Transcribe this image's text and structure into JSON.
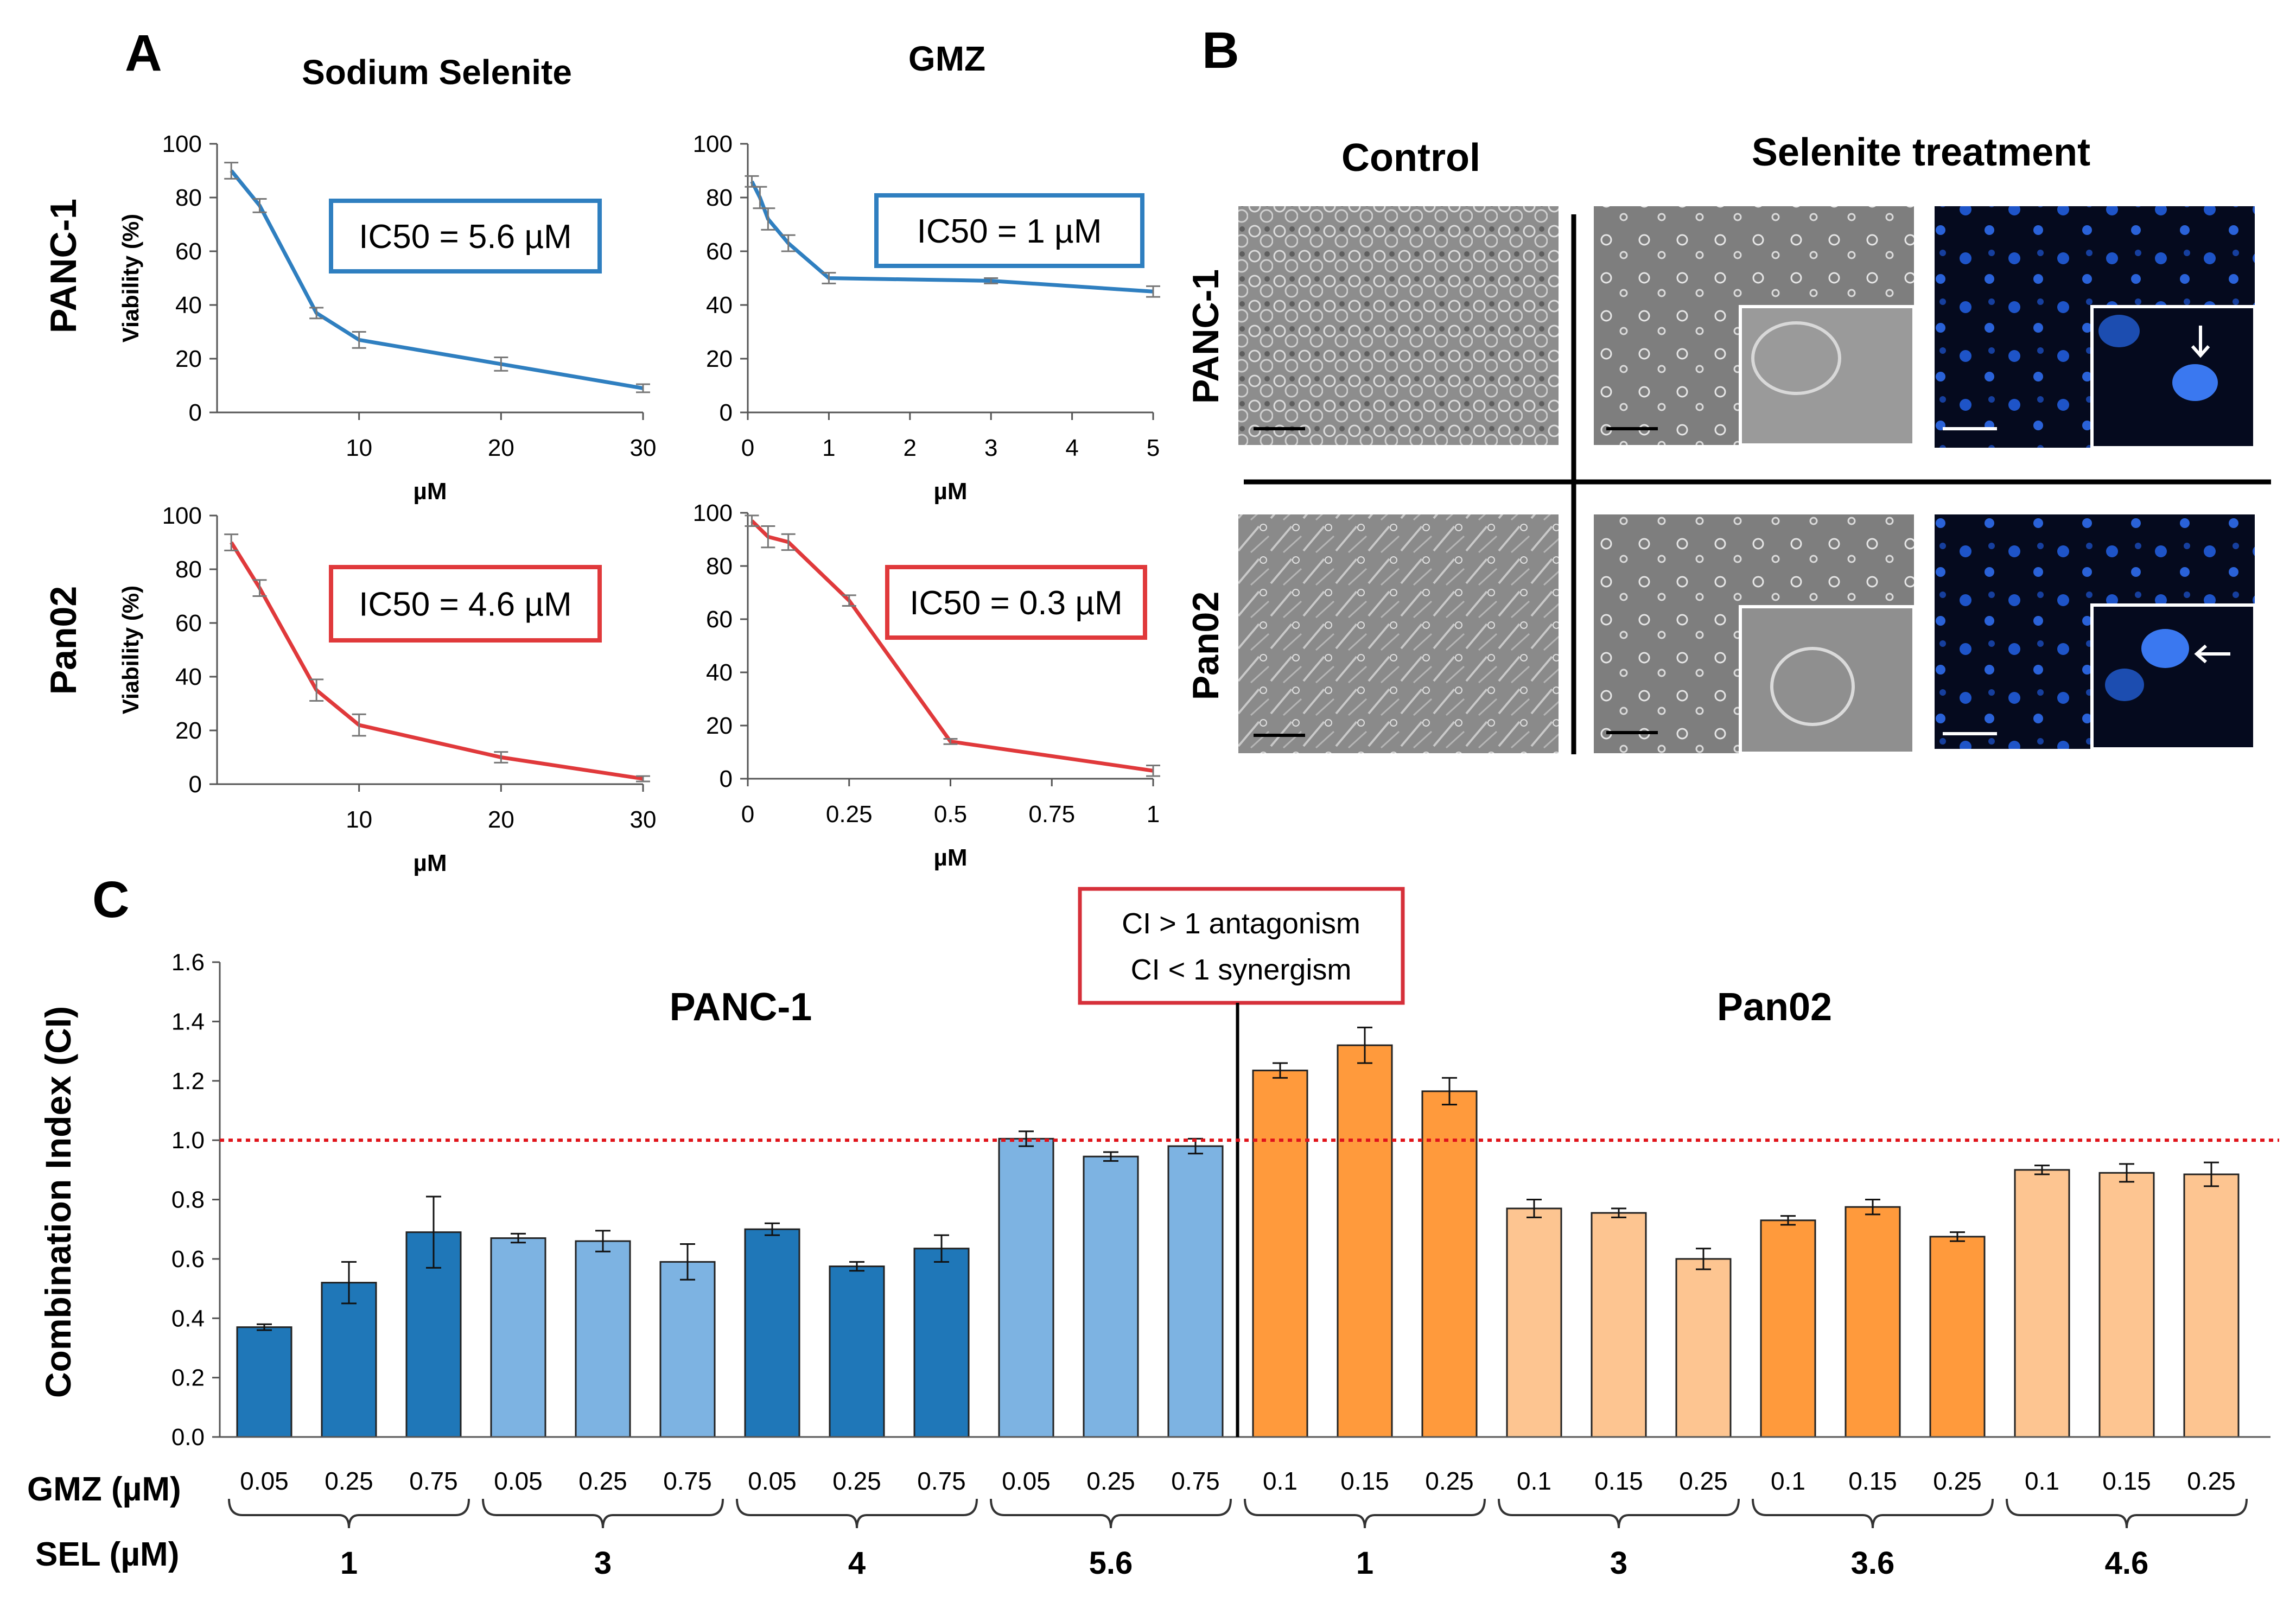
{
  "panel_labels": {
    "a": "A",
    "b": "B",
    "c": "C"
  },
  "colors": {
    "blue": "#2f7fc0",
    "red": "#e0393b",
    "dark_blue": "#1f77b8",
    "light_blue": "#7db3e2",
    "orange": "#ff9a3c",
    "light_orange": "#fdc591",
    "ref_line": "#e0141b"
  },
  "panel_a": {
    "col_titles": [
      "Sodium Selenite",
      "GMZ"
    ],
    "row_titles": [
      "PANC-1",
      "Pan02"
    ]
  },
  "panel_b": {
    "col_titles": [
      "Control",
      "Selenite treatment"
    ],
    "row_titles": [
      "PANC-1",
      "Pan02"
    ]
  },
  "legend": {
    "line1": "CI > 1 antagonism",
    "line2": "CI < 1 synergism"
  },
  "chart_data": [
    {
      "type": "line",
      "id": "a-panc1-sel",
      "title": "Sodium Selenite",
      "row": "PANC-1",
      "xlabel": "µM",
      "ylabel": "Viability (%)",
      "xlim": [
        0,
        30
      ],
      "ylim": [
        0,
        100
      ],
      "xticks": [
        10,
        20,
        30
      ],
      "xtick_labels": [
        "10",
        "20",
        "30"
      ],
      "yticks": [
        0,
        20,
        40,
        60,
        80,
        100
      ],
      "annotation": "IC50 = 5.6 µM",
      "series": [
        {
          "name": "PANC-1 Sodium Selenite",
          "color": "#2f7fc0",
          "x": [
            1,
            3,
            7,
            10,
            20,
            30
          ],
          "y": [
            90,
            77,
            37,
            27,
            18,
            9
          ],
          "err": [
            3,
            2.5,
            2,
            3,
            2.5,
            1.5
          ]
        }
      ]
    },
    {
      "type": "line",
      "id": "a-panc1-gmz",
      "title": "GMZ",
      "row": "PANC-1",
      "xlabel": "µM",
      "ylabel": "",
      "xlim": [
        0,
        5
      ],
      "ylim": [
        0,
        100
      ],
      "xticks": [
        0,
        1,
        2,
        3,
        4,
        5
      ],
      "xtick_labels": [
        "0",
        "1",
        "2",
        "3",
        "4",
        "5"
      ],
      "yticks": [
        0,
        20,
        40,
        60,
        80,
        100
      ],
      "annotation": "IC50 = 1 µM",
      "series": [
        {
          "name": "PANC-1 GMZ",
          "color": "#2f7fc0",
          "x": [
            0.05,
            0.15,
            0.25,
            0.5,
            1,
            3,
            5
          ],
          "y": [
            86,
            80,
            72,
            63,
            50,
            49,
            45
          ],
          "err": [
            2,
            4,
            4,
            3,
            2,
            1,
            2
          ]
        }
      ]
    },
    {
      "type": "line",
      "id": "a-pan02-sel",
      "title": "",
      "row": "Pan02",
      "xlabel": "µM",
      "ylabel": "Viability (%)",
      "xlim": [
        0,
        30
      ],
      "ylim": [
        0,
        100
      ],
      "xticks": [
        10,
        20,
        30
      ],
      "xtick_labels": [
        "10",
        "20",
        "30"
      ],
      "yticks": [
        0,
        20,
        40,
        60,
        80,
        100
      ],
      "annotation": "IC50 = 4.6 µM",
      "series": [
        {
          "name": "Pan02 Sodium Selenite",
          "color": "#e0393b",
          "x": [
            1,
            3,
            7,
            10,
            20,
            30
          ],
          "y": [
            90,
            73,
            35,
            22,
            10,
            2
          ],
          "err": [
            3,
            3,
            4,
            4,
            2,
            1
          ]
        }
      ]
    },
    {
      "type": "line",
      "id": "a-pan02-gmz",
      "title": "",
      "row": "Pan02",
      "xlabel": "µM",
      "ylabel": "",
      "xlim": [
        0,
        1
      ],
      "ylim": [
        0,
        100
      ],
      "xticks": [
        0,
        0.25,
        0.5,
        0.75,
        1
      ],
      "xtick_labels": [
        "0",
        "0.25",
        "0.5",
        "0.75",
        "1"
      ],
      "yticks": [
        0,
        20,
        40,
        60,
        80,
        100
      ],
      "annotation": "IC50 = 0.3 µM",
      "series": [
        {
          "name": "Pan02 GMZ",
          "color": "#e0393b",
          "x": [
            0.01,
            0.05,
            0.1,
            0.25,
            0.5,
            1
          ],
          "y": [
            97,
            91,
            89,
            67,
            14,
            3
          ],
          "err": [
            2,
            4,
            3,
            2,
            1,
            2
          ]
        }
      ]
    },
    {
      "type": "bar",
      "id": "c-combination-index",
      "ylabel": "Combination Index (CI)",
      "ylim": [
        0,
        1.6
      ],
      "yticks": [
        0,
        0.2,
        0.4,
        0.6,
        0.8,
        1.0,
        1.2,
        1.4,
        1.6
      ],
      "ytick_labels": [
        "0.0",
        "0.2",
        "0.4",
        "0.6",
        "0.8",
        "1.0",
        "1.2",
        "1.4",
        "1.6"
      ],
      "reference_line": 1.0,
      "cell_lines": [
        "PANC-1",
        "Pan02"
      ],
      "row_label_gmz": "GMZ (µM)",
      "row_label_sel": "SEL (µM)",
      "groups": [
        {
          "cell_line": "PANC-1",
          "sel": "1",
          "shade": "dark",
          "gmz": [
            "0.05",
            "0.25",
            "0.75"
          ],
          "values": [
            0.37,
            0.52,
            0.69
          ],
          "err": [
            0.01,
            0.07,
            0.12
          ]
        },
        {
          "cell_line": "PANC-1",
          "sel": "3",
          "shade": "light",
          "gmz": [
            "0.05",
            "0.25",
            "0.75"
          ],
          "values": [
            0.67,
            0.66,
            0.59
          ],
          "err": [
            0.015,
            0.035,
            0.06
          ]
        },
        {
          "cell_line": "PANC-1",
          "sel": "4",
          "shade": "dark",
          "gmz": [
            "0.05",
            "0.25",
            "0.75"
          ],
          "values": [
            0.7,
            0.575,
            0.635
          ],
          "err": [
            0.02,
            0.015,
            0.045
          ]
        },
        {
          "cell_line": "PANC-1",
          "sel": "5.6",
          "shade": "light",
          "gmz": [
            "0.05",
            "0.25",
            "0.75"
          ],
          "values": [
            1.005,
            0.945,
            0.98
          ],
          "err": [
            0.025,
            0.015,
            0.025
          ]
        },
        {
          "cell_line": "Pan02",
          "sel": "1",
          "shade": "dark",
          "gmz": [
            "0.1",
            "0.15",
            "0.25"
          ],
          "values": [
            1.235,
            1.32,
            1.165
          ],
          "err": [
            0.025,
            0.06,
            0.045
          ]
        },
        {
          "cell_line": "Pan02",
          "sel": "3",
          "shade": "light",
          "gmz": [
            "0.1",
            "0.15",
            "0.25"
          ],
          "values": [
            0.77,
            0.755,
            0.6
          ],
          "err": [
            0.03,
            0.015,
            0.035
          ]
        },
        {
          "cell_line": "Pan02",
          "sel": "3.6",
          "shade": "dark",
          "gmz": [
            "0.1",
            "0.15",
            "0.25"
          ],
          "values": [
            0.73,
            0.775,
            0.675
          ],
          "err": [
            0.015,
            0.025,
            0.015
          ]
        },
        {
          "cell_line": "Pan02",
          "sel": "4.6",
          "shade": "light",
          "gmz": [
            "0.1",
            "0.15",
            "0.25"
          ],
          "values": [
            0.9,
            0.89,
            0.885
          ],
          "err": [
            0.015,
            0.03,
            0.04
          ]
        }
      ]
    }
  ]
}
